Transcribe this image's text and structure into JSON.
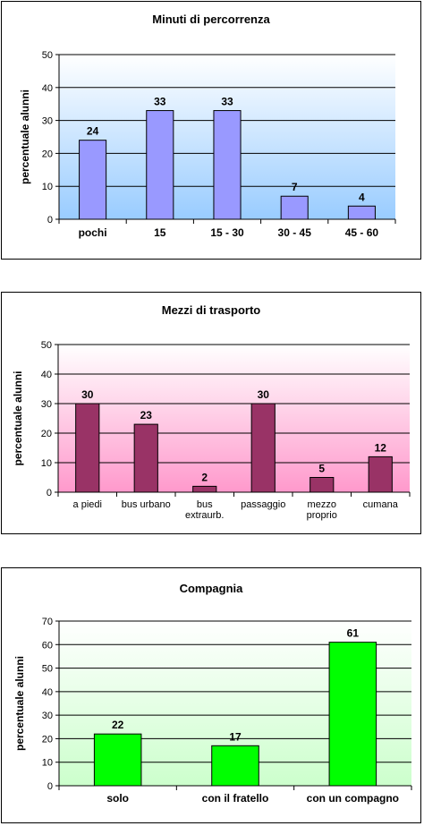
{
  "chart_data": [
    {
      "type": "bar",
      "title": "Minuti di percorrenza",
      "ylabel": "percentuale alunni",
      "xlabel": "",
      "categories": [
        "pochi",
        "15",
        "15 - 30",
        "30 - 45",
        "45 - 60"
      ],
      "values": [
        24,
        33,
        33,
        7,
        4
      ],
      "data_labels": [
        "24",
        "33",
        "33",
        "7",
        "4"
      ],
      "ylim": [
        0,
        50
      ],
      "yticks": [
        0,
        10,
        20,
        30,
        40,
        50
      ],
      "grid": true,
      "colors": {
        "bar": "#9999ff",
        "bar_border": "#000000",
        "plot_top": "#ffffff",
        "plot_bottom": "#99ccff"
      }
    },
    {
      "type": "bar",
      "title": "Mezzi di trasporto",
      "ylabel": "percentuale alunni",
      "xlabel": "",
      "categories": [
        [
          "a piedi"
        ],
        [
          "bus urbano"
        ],
        [
          "bus",
          "extraurb."
        ],
        [
          "passaggio"
        ],
        [
          "mezzo",
          "proprio"
        ],
        [
          "cumana"
        ]
      ],
      "values": [
        30,
        23,
        2,
        30,
        5,
        12
      ],
      "data_labels": [
        "30",
        "23",
        "2",
        "30",
        "5",
        "12"
      ],
      "ylim": [
        0,
        50
      ],
      "yticks": [
        0,
        10,
        20,
        30,
        40,
        50
      ],
      "grid": true,
      "colors": {
        "bar": "#993366",
        "bar_border": "#000000",
        "plot_top": "#ffffff",
        "plot_bottom": "#ff99cc"
      }
    },
    {
      "type": "bar",
      "title": "Compagnia",
      "ylabel": "percentuale alunni",
      "xlabel": "",
      "categories": [
        "solo",
        "con il fratello",
        "con un compagno"
      ],
      "values": [
        22,
        17,
        61
      ],
      "data_labels": [
        "22",
        "17",
        "61"
      ],
      "ylim": [
        0,
        70
      ],
      "yticks": [
        0,
        10,
        20,
        30,
        40,
        50,
        60,
        70
      ],
      "grid": true,
      "colors": {
        "bar": "#00ff00",
        "bar_border": "#000000",
        "plot_top": "#ffffff",
        "plot_bottom": "#ccffcc"
      }
    }
  ]
}
